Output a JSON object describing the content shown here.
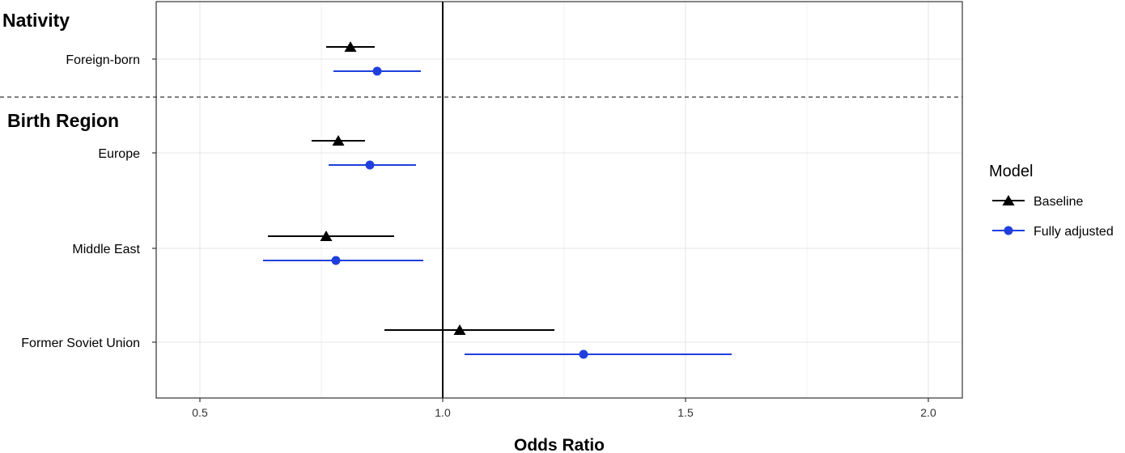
{
  "chart_data": {
    "type": "scatter",
    "xlabel": "Odds Ratio",
    "xlim": [
      0.41,
      2.07
    ],
    "x_ticks": [
      "0.5",
      "1.0",
      "1.5",
      "2.0"
    ],
    "reference_line": 1.0,
    "sections": [
      {
        "title": "Nativity",
        "categories": [
          "Foreign-born"
        ]
      },
      {
        "title": "Birth Region",
        "categories": [
          "Europe",
          "Middle East",
          "Former Soviet Union"
        ]
      }
    ],
    "legend": {
      "title": "Model",
      "position": "right"
    },
    "series": [
      {
        "name": "Baseline",
        "marker": "triangle",
        "color": "#000000",
        "points": [
          {
            "category": "Foreign-born",
            "estimate": 0.81,
            "lower": 0.76,
            "upper": 0.86
          },
          {
            "category": "Europe",
            "estimate": 0.785,
            "lower": 0.73,
            "upper": 0.84
          },
          {
            "category": "Middle East",
            "estimate": 0.76,
            "lower": 0.64,
            "upper": 0.9
          },
          {
            "category": "Former Soviet Union",
            "estimate": 1.035,
            "lower": 0.88,
            "upper": 1.23
          }
        ]
      },
      {
        "name": "Fully adjusted",
        "marker": "circle",
        "color": "#1f3fdd",
        "points": [
          {
            "category": "Foreign-born",
            "estimate": 0.865,
            "lower": 0.775,
            "upper": 0.955
          },
          {
            "category": "Europe",
            "estimate": 0.85,
            "lower": 0.765,
            "upper": 0.945
          },
          {
            "category": "Middle East",
            "estimate": 0.78,
            "lower": 0.63,
            "upper": 0.96
          },
          {
            "category": "Former Soviet Union",
            "estimate": 1.29,
            "lower": 1.045,
            "upper": 1.595
          }
        ]
      }
    ]
  }
}
